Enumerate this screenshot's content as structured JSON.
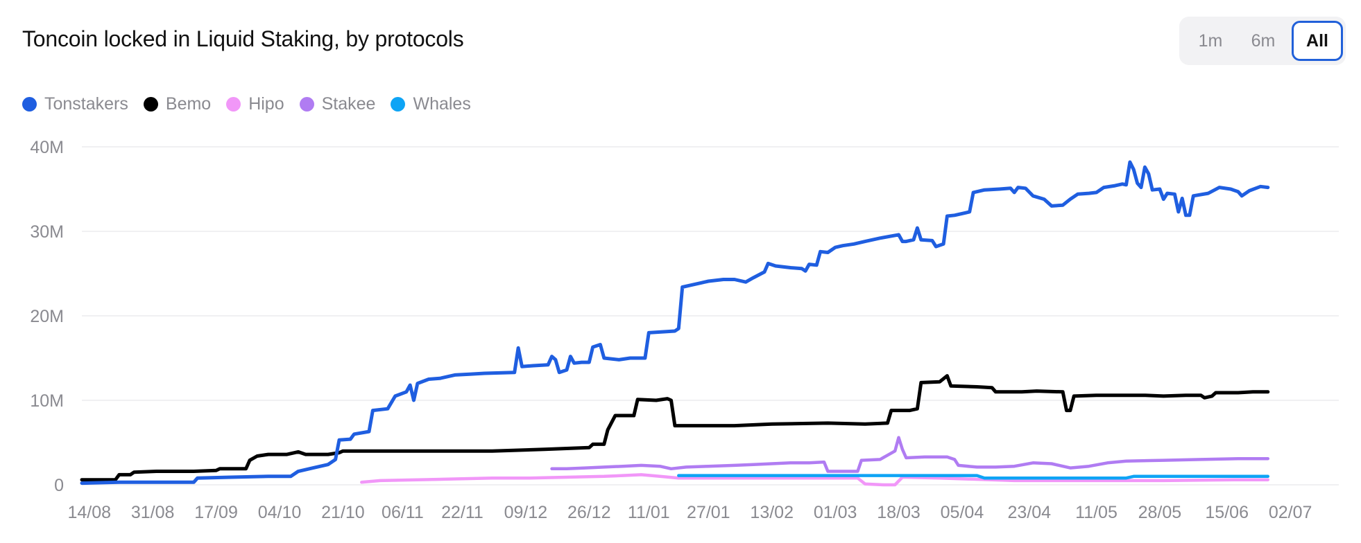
{
  "header": {
    "title": "Toncoin locked in Liquid Staking, by protocols"
  },
  "time_range": {
    "options": [
      "1m",
      "6m",
      "All"
    ],
    "selected": "All"
  },
  "chart_data": {
    "type": "line",
    "title": "Toncoin locked in Liquid Staking, by protocols",
    "xlabel": "",
    "ylabel": "",
    "ylim": [
      0,
      40
    ],
    "y_unit": "M",
    "y_ticks": [
      0,
      10,
      20,
      30,
      40
    ],
    "y_tick_labels": [
      "0",
      "10M",
      "20M",
      "30M",
      "40M"
    ],
    "x_tick_labels": [
      "14/08",
      "31/08",
      "17/09",
      "04/10",
      "21/10",
      "06/11",
      "22/11",
      "09/12",
      "26/12",
      "11/01",
      "27/01",
      "13/02",
      "01/03",
      "18/03",
      "05/04",
      "23/04",
      "11/05",
      "28/05",
      "15/06",
      "02/07"
    ],
    "x_tick_index": [
      2,
      19,
      36,
      53,
      70,
      86,
      102,
      119,
      136,
      152,
      168,
      185,
      202,
      219,
      236,
      254,
      272,
      289,
      307,
      324
    ],
    "x_range": [
      0,
      337
    ],
    "grid": true,
    "legend_position": "top-left",
    "series": [
      {
        "name": "Tonstakers",
        "color": "#1f5ee0",
        "points": [
          [
            0,
            0.2
          ],
          [
            10,
            0.3
          ],
          [
            20,
            0.3
          ],
          [
            30,
            0.3
          ],
          [
            31,
            0.8
          ],
          [
            40,
            0.9
          ],
          [
            50,
            1.0
          ],
          [
            56,
            1.0
          ],
          [
            58,
            1.6
          ],
          [
            62,
            2.0
          ],
          [
            66,
            2.4
          ],
          [
            68,
            3.0
          ],
          [
            69,
            5.3
          ],
          [
            72,
            5.4
          ],
          [
            73,
            6.0
          ],
          [
            77,
            6.3
          ],
          [
            78,
            8.8
          ],
          [
            82,
            9.0
          ],
          [
            84,
            10.5
          ],
          [
            87,
            11.0
          ],
          [
            88,
            11.8
          ],
          [
            89,
            10.0
          ],
          [
            90,
            12.0
          ],
          [
            93,
            12.5
          ],
          [
            96,
            12.6
          ],
          [
            100,
            13.0
          ],
          [
            104,
            13.1
          ],
          [
            108,
            13.2
          ],
          [
            116,
            13.3
          ],
          [
            117,
            16.2
          ],
          [
            118,
            14.0
          ],
          [
            121,
            14.1
          ],
          [
            125,
            14.2
          ],
          [
            126,
            15.2
          ],
          [
            127,
            14.8
          ],
          [
            128,
            13.3
          ],
          [
            130,
            13.6
          ],
          [
            131,
            15.2
          ],
          [
            132,
            14.4
          ],
          [
            134,
            14.5
          ],
          [
            136,
            14.5
          ],
          [
            137,
            16.3
          ],
          [
            139,
            16.6
          ],
          [
            140,
            15.0
          ],
          [
            144,
            14.8
          ],
          [
            147,
            15.0
          ],
          [
            151,
            15.0
          ],
          [
            152,
            18.0
          ],
          [
            159,
            18.2
          ],
          [
            160,
            18.5
          ],
          [
            161,
            23.4
          ],
          [
            163,
            23.6
          ],
          [
            166,
            23.9
          ],
          [
            168,
            24.1
          ],
          [
            172,
            24.3
          ],
          [
            175,
            24.3
          ],
          [
            178,
            24.0
          ],
          [
            180,
            24.5
          ],
          [
            183,
            25.2
          ],
          [
            184,
            26.2
          ],
          [
            186,
            25.9
          ],
          [
            190,
            25.7
          ],
          [
            193,
            25.6
          ],
          [
            194,
            25.3
          ],
          [
            195,
            26.1
          ],
          [
            197,
            26.0
          ],
          [
            198,
            27.6
          ],
          [
            200,
            27.5
          ],
          [
            202,
            28.1
          ],
          [
            204,
            28.3
          ],
          [
            207,
            28.5
          ],
          [
            210,
            28.8
          ],
          [
            214,
            29.2
          ],
          [
            219,
            29.6
          ],
          [
            220,
            28.8
          ],
          [
            221,
            28.8
          ],
          [
            223,
            29.0
          ],
          [
            224,
            30.4
          ],
          [
            225,
            29.0
          ],
          [
            228,
            28.9
          ],
          [
            229,
            28.2
          ],
          [
            231,
            28.5
          ],
          [
            232,
            31.8
          ],
          [
            234,
            31.9
          ],
          [
            237,
            32.2
          ],
          [
            238,
            32.3
          ],
          [
            239,
            34.6
          ],
          [
            242,
            34.9
          ],
          [
            246,
            35.0
          ],
          [
            249,
            35.1
          ],
          [
            250,
            34.6
          ],
          [
            251,
            35.2
          ],
          [
            253,
            35.1
          ],
          [
            255,
            34.2
          ],
          [
            258,
            33.8
          ],
          [
            260,
            33.0
          ],
          [
            263,
            33.1
          ],
          [
            265,
            33.8
          ],
          [
            267,
            34.4
          ],
          [
            270,
            34.5
          ],
          [
            272,
            34.6
          ],
          [
            274,
            35.2
          ],
          [
            277,
            35.4
          ],
          [
            279,
            35.6
          ],
          [
            280,
            35.5
          ],
          [
            281,
            38.2
          ],
          [
            282,
            37.3
          ],
          [
            283,
            35.7
          ],
          [
            284,
            35.2
          ],
          [
            285,
            37.6
          ],
          [
            286,
            36.8
          ],
          [
            287,
            34.9
          ],
          [
            289,
            35.0
          ],
          [
            290,
            33.8
          ],
          [
            291,
            34.5
          ],
          [
            293,
            34.4
          ],
          [
            294,
            32.3
          ],
          [
            295,
            33.9
          ],
          [
            296,
            31.9
          ],
          [
            297,
            31.9
          ],
          [
            298,
            34.2
          ],
          [
            302,
            34.5
          ],
          [
            305,
            35.2
          ],
          [
            308,
            35.0
          ],
          [
            310,
            34.7
          ],
          [
            311,
            34.2
          ],
          [
            313,
            34.8
          ],
          [
            316,
            35.3
          ],
          [
            318,
            35.2
          ]
        ]
      },
      {
        "name": "Bemo",
        "color": "#000000",
        "points": [
          [
            0,
            0.6
          ],
          [
            9,
            0.6
          ],
          [
            10,
            1.2
          ],
          [
            13,
            1.2
          ],
          [
            14,
            1.5
          ],
          [
            20,
            1.6
          ],
          [
            30,
            1.6
          ],
          [
            36,
            1.7
          ],
          [
            37,
            1.9
          ],
          [
            44,
            1.9
          ],
          [
            45,
            2.9
          ],
          [
            47,
            3.4
          ],
          [
            50,
            3.6
          ],
          [
            55,
            3.6
          ],
          [
            58,
            3.9
          ],
          [
            60,
            3.6
          ],
          [
            66,
            3.6
          ],
          [
            69,
            3.8
          ],
          [
            70,
            4.0
          ],
          [
            90,
            4.0
          ],
          [
            110,
            4.0
          ],
          [
            124,
            4.2
          ],
          [
            130,
            4.3
          ],
          [
            136,
            4.4
          ],
          [
            137,
            4.8
          ],
          [
            140,
            4.8
          ],
          [
            141,
            6.5
          ],
          [
            143,
            8.2
          ],
          [
            148,
            8.2
          ],
          [
            149,
            10.1
          ],
          [
            154,
            10.0
          ],
          [
            157,
            10.2
          ],
          [
            158,
            10.0
          ],
          [
            159,
            7.0
          ],
          [
            165,
            7.0
          ],
          [
            175,
            7.0
          ],
          [
            185,
            7.2
          ],
          [
            200,
            7.3
          ],
          [
            210,
            7.2
          ],
          [
            216,
            7.3
          ],
          [
            217,
            8.8
          ],
          [
            222,
            8.8
          ],
          [
            224,
            9.0
          ],
          [
            225,
            12.1
          ],
          [
            230,
            12.2
          ],
          [
            232,
            12.9
          ],
          [
            233,
            11.7
          ],
          [
            240,
            11.6
          ],
          [
            244,
            11.5
          ],
          [
            245,
            11.0
          ],
          [
            250,
            11.0
          ],
          [
            252,
            11.0
          ],
          [
            256,
            11.1
          ],
          [
            263,
            11.0
          ],
          [
            264,
            8.8
          ],
          [
            265,
            8.8
          ],
          [
            266,
            10.5
          ],
          [
            272,
            10.6
          ],
          [
            278,
            10.6
          ],
          [
            285,
            10.6
          ],
          [
            290,
            10.5
          ],
          [
            296,
            10.6
          ],
          [
            300,
            10.6
          ],
          [
            301,
            10.3
          ],
          [
            303,
            10.5
          ],
          [
            304,
            10.9
          ],
          [
            310,
            10.9
          ],
          [
            314,
            11.0
          ],
          [
            318,
            11.0
          ]
        ]
      },
      {
        "name": "Hipo",
        "color": "#f197f8",
        "points": [
          [
            75,
            0.3
          ],
          [
            80,
            0.5
          ],
          [
            90,
            0.6
          ],
          [
            100,
            0.7
          ],
          [
            110,
            0.8
          ],
          [
            120,
            0.8
          ],
          [
            130,
            0.9
          ],
          [
            140,
            1.0
          ],
          [
            145,
            1.1
          ],
          [
            150,
            1.2
          ],
          [
            155,
            1.0
          ],
          [
            160,
            0.8
          ],
          [
            180,
            0.8
          ],
          [
            200,
            0.8
          ],
          [
            208,
            0.8
          ],
          [
            210,
            0.1
          ],
          [
            215,
            0.0
          ],
          [
            218,
            0.0
          ],
          [
            220,
            0.9
          ],
          [
            230,
            0.8
          ],
          [
            250,
            0.5
          ],
          [
            270,
            0.5
          ],
          [
            290,
            0.5
          ],
          [
            310,
            0.6
          ],
          [
            318,
            0.6
          ]
        ]
      },
      {
        "name": "Stakee",
        "color": "#b07cf2",
        "points": [
          [
            126,
            1.9
          ],
          [
            130,
            1.9
          ],
          [
            135,
            2.0
          ],
          [
            140,
            2.1
          ],
          [
            145,
            2.2
          ],
          [
            150,
            2.3
          ],
          [
            155,
            2.2
          ],
          [
            158,
            1.9
          ],
          [
            162,
            2.1
          ],
          [
            168,
            2.2
          ],
          [
            175,
            2.3
          ],
          [
            180,
            2.4
          ],
          [
            185,
            2.5
          ],
          [
            190,
            2.6
          ],
          [
            195,
            2.6
          ],
          [
            199,
            2.7
          ],
          [
            200,
            1.6
          ],
          [
            205,
            1.6
          ],
          [
            208,
            1.6
          ],
          [
            209,
            2.9
          ],
          [
            214,
            3.0
          ],
          [
            216,
            3.5
          ],
          [
            218,
            4.0
          ],
          [
            219,
            5.6
          ],
          [
            220,
            4.2
          ],
          [
            221,
            3.2
          ],
          [
            226,
            3.3
          ],
          [
            232,
            3.3
          ],
          [
            234,
            3.0
          ],
          [
            235,
            2.3
          ],
          [
            240,
            2.1
          ],
          [
            245,
            2.1
          ],
          [
            250,
            2.2
          ],
          [
            255,
            2.6
          ],
          [
            260,
            2.5
          ],
          [
            265,
            2.0
          ],
          [
            270,
            2.2
          ],
          [
            275,
            2.6
          ],
          [
            280,
            2.8
          ],
          [
            290,
            2.9
          ],
          [
            300,
            3.0
          ],
          [
            310,
            3.1
          ],
          [
            318,
            3.1
          ]
        ]
      },
      {
        "name": "Whales",
        "color": "#0ea4f5",
        "points": [
          [
            160,
            1.1
          ],
          [
            180,
            1.1
          ],
          [
            200,
            1.1
          ],
          [
            220,
            1.1
          ],
          [
            240,
            1.1
          ],
          [
            242,
            0.8
          ],
          [
            260,
            0.8
          ],
          [
            270,
            0.8
          ],
          [
            280,
            0.8
          ],
          [
            282,
            1.0
          ],
          [
            290,
            1.0
          ],
          [
            300,
            1.0
          ],
          [
            318,
            1.0
          ]
        ]
      }
    ]
  }
}
